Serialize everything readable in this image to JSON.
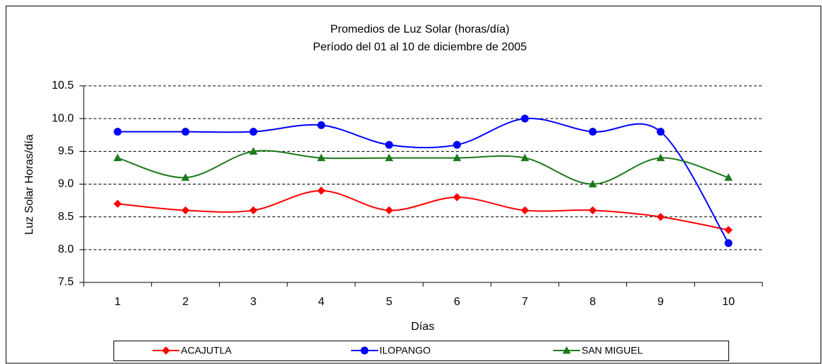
{
  "chart_data": {
    "type": "line",
    "title": "Promedios de Luz Solar (horas/día)",
    "subtitle": "Período del 01 al 10 de diciembre de 2005",
    "x_label": "Días",
    "y_label": "Luz Solar Horas/día",
    "categories": [
      "1",
      "2",
      "3",
      "4",
      "5",
      "6",
      "7",
      "8",
      "9",
      "10"
    ],
    "series": [
      {
        "name": "ACAJUTLA",
        "color": "#ff0000",
        "marker": "diamond",
        "values": [
          8.7,
          8.6,
          8.6,
          8.9,
          8.6,
          8.8,
          8.6,
          8.6,
          8.5,
          8.3
        ]
      },
      {
        "name": "ILOPANGO",
        "color": "#0000ff",
        "marker": "circle",
        "values": [
          9.8,
          9.8,
          9.8,
          9.9,
          9.6,
          9.6,
          10.0,
          9.8,
          9.8,
          8.1
        ]
      },
      {
        "name": "SAN MIGUEL",
        "color": "#1b7a1b",
        "marker": "triangle",
        "values": [
          9.4,
          9.1,
          9.5,
          9.4,
          9.4,
          9.4,
          9.4,
          9.0,
          9.4,
          9.1
        ]
      }
    ],
    "ylim": [
      7.5,
      10.5
    ],
    "yticks": [
      7.5,
      {
        "value": 8,
        "label": "8.0"
      },
      8.5,
      {
        "value": 9,
        "label": "9.0"
      },
      9.5,
      {
        "value": 10,
        "label": "10.0"
      },
      10.5
    ],
    "grid": true,
    "smooth": true,
    "legend": "bottom"
  }
}
